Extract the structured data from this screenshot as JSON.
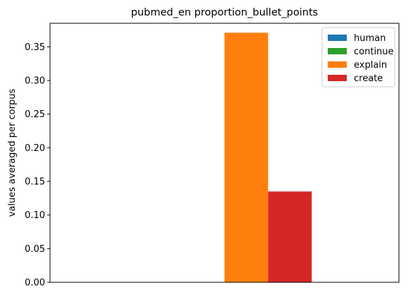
{
  "chart_data": {
    "type": "bar",
    "title": "pubmed_en proportion_bullet_points",
    "xlabel": "",
    "ylabel": "values averaged per corpus",
    "ylim": [
      0,
      0.385
    ],
    "yticks": [
      0.0,
      0.05,
      0.1,
      0.15,
      0.2,
      0.25,
      0.3,
      0.35
    ],
    "ytick_labels": [
      "0.00",
      "0.05",
      "0.10",
      "0.15",
      "0.20",
      "0.25",
      "0.30",
      "0.35"
    ],
    "categories": [
      ""
    ],
    "series": [
      {
        "name": "human",
        "values": [
          0.0
        ],
        "color": "#1f77b4"
      },
      {
        "name": "continue",
        "values": [
          0.0
        ],
        "color": "#2ca02c"
      },
      {
        "name": "explain",
        "values": [
          0.371
        ],
        "color": "#ff7f0e"
      },
      {
        "name": "create",
        "values": [
          0.135
        ],
        "color": "#d62728"
      }
    ],
    "legend_position": "top-right",
    "grid": false
  }
}
